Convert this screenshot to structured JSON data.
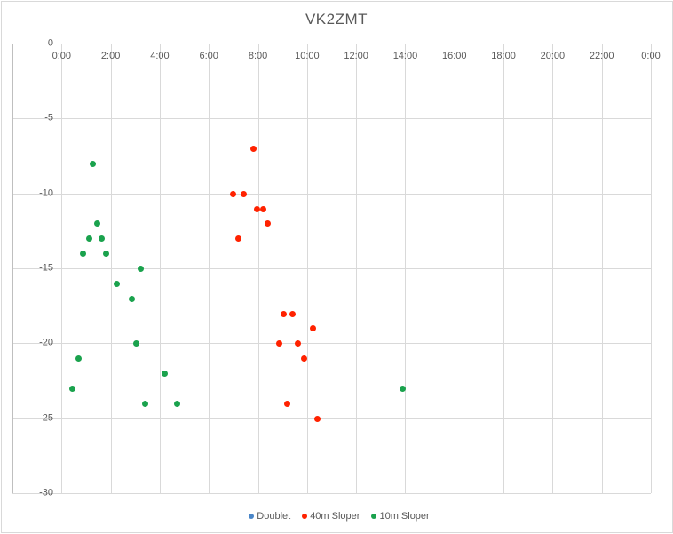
{
  "title": "VK2ZMT",
  "chart_data": {
    "type": "scatter",
    "title": "VK2ZMT",
    "grid": true,
    "legend_position": "bottom",
    "x_axis": {
      "type": "time-of-day",
      "range_hours": [
        -2,
        24
      ],
      "tick_hours": [
        0,
        2,
        4,
        6,
        8,
        10,
        12,
        14,
        16,
        18,
        20,
        22,
        24
      ],
      "tick_labels": [
        "0:00",
        "2:00",
        "4:00",
        "6:00",
        "8:00",
        "10:00",
        "12:00",
        "14:00",
        "16:00",
        "18:00",
        "20:00",
        "22:00",
        "0:00"
      ]
    },
    "y_axis": {
      "range": [
        -30,
        0
      ],
      "tick_values": [
        0,
        -5,
        -10,
        -15,
        -20,
        -25,
        -30
      ],
      "tick_labels": [
        "0",
        "-5",
        "-10",
        "-15",
        "-20",
        "-25",
        "-30"
      ]
    },
    "series": [
      {
        "name": "Doublet",
        "color": "#4a86c8",
        "points": []
      },
      {
        "name": "40m Sloper",
        "color": "#ff2200",
        "points": [
          [
            "6:59",
            -10
          ],
          [
            "7:13",
            -13
          ],
          [
            "7:25",
            -10
          ],
          [
            "7:49",
            -7
          ],
          [
            "7:58",
            -11
          ],
          [
            "8:12",
            -11
          ],
          [
            "8:24",
            -12
          ],
          [
            "8:53",
            -20
          ],
          [
            "9:03",
            -18
          ],
          [
            "9:12",
            -24
          ],
          [
            "9:24",
            -18
          ],
          [
            "9:38",
            -20
          ],
          [
            "9:52",
            -21
          ],
          [
            "10:15",
            -19
          ],
          [
            "10:26",
            -25
          ]
        ]
      },
      {
        "name": "10m Sloper",
        "color": "#1aa24d",
        "points": [
          [
            "0:27",
            -23
          ],
          [
            "0:41",
            -21
          ],
          [
            "0:52",
            -14
          ],
          [
            "1:07",
            -13
          ],
          [
            "1:16",
            -8
          ],
          [
            "1:27",
            -12
          ],
          [
            "1:38",
            -13
          ],
          [
            "1:49",
            -14
          ],
          [
            "2:15",
            -16
          ],
          [
            "2:52",
            -17
          ],
          [
            "3:03",
            -20
          ],
          [
            "3:13",
            -15
          ],
          [
            "3:24",
            -24
          ],
          [
            "4:13",
            -22
          ],
          [
            "4:42",
            -24
          ],
          [
            "13:53",
            -23
          ]
        ]
      }
    ]
  }
}
